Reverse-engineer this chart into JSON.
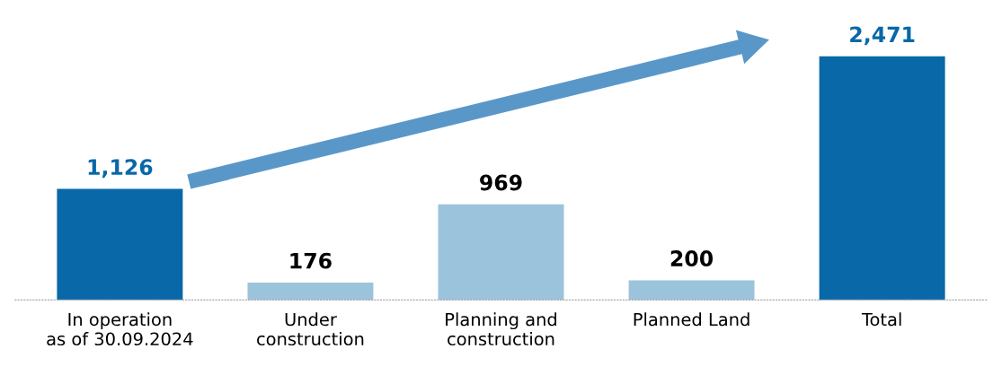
{
  "chart_data": {
    "type": "bar",
    "categories": [
      "In operation\nas of 30.09.2024",
      "Under\nconstruction",
      "Planning and\nconstruction",
      "Planned Land",
      "Total"
    ],
    "values": [
      1126,
      176,
      969,
      200,
      2471
    ],
    "colors": [
      "#0868a8",
      "#9cc3dc",
      "#9cc3dc",
      "#9cc3dc",
      "#0868a8"
    ],
    "value_labels": [
      "1,126",
      "176",
      "969",
      "200",
      "2,471"
    ],
    "grid": false,
    "legend": false,
    "tick_labels": "x"
  }
}
